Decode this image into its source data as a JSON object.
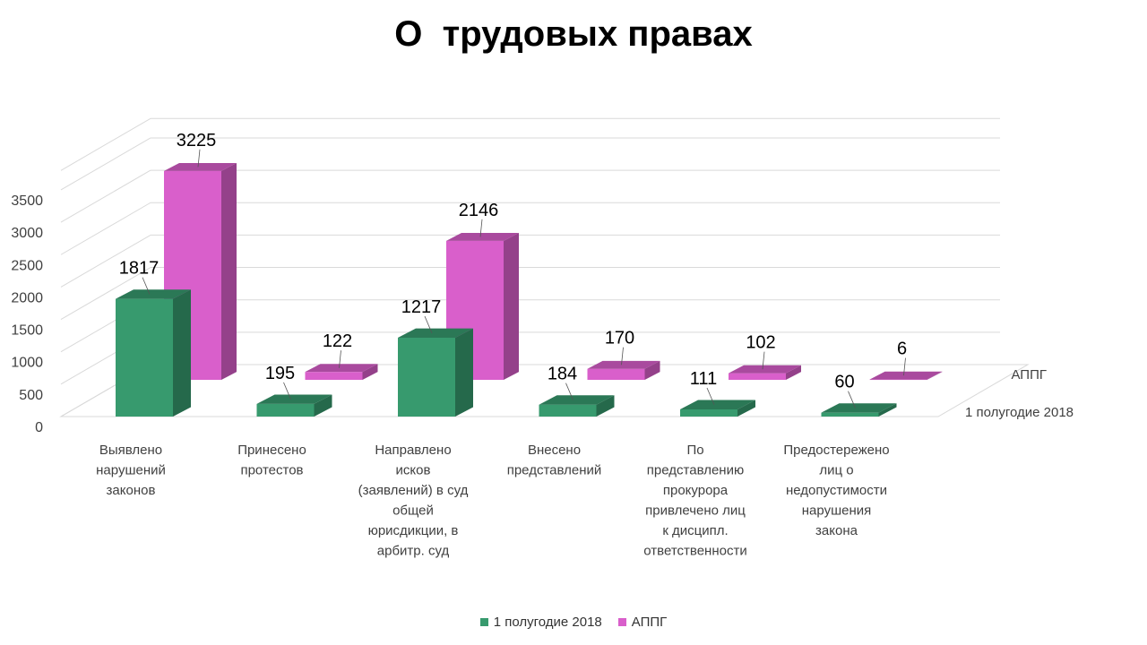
{
  "chart_data": {
    "type": "bar",
    "title": "О  трудовых правах",
    "categories": [
      "Выявлено нарушений законов",
      "Принесено протестов",
      "Направлено исков (заявлений) в суд общей юрисдикции, в арбитр. суд",
      "Внесено представлений",
      "По представлению прокурора привлечено лиц к дисципл. ответственности",
      "Предостережено лиц о недопустимости нарушения закона"
    ],
    "category_lines": [
      [
        "Выявлено",
        "нарушений",
        "законов"
      ],
      [
        "Принесено",
        "протестов"
      ],
      [
        "Направлено",
        "исков",
        "(заявлений) в суд",
        "общей",
        "юрисдикции, в",
        "арбитр. суд"
      ],
      [
        "Внесено",
        "представлений"
      ],
      [
        "По",
        "представлению",
        "прокурора",
        "привлечено лиц",
        "к дисципл.",
        "ответственности"
      ],
      [
        "Предостережено",
        "лиц о",
        "недопустимости",
        "нарушения",
        "закона"
      ]
    ],
    "series": [
      {
        "name": "1 полугодие 2018",
        "values": [
          1817,
          195,
          1217,
          184,
          111,
          60
        ],
        "color": "#379a6e"
      },
      {
        "name": "АППГ",
        "values": [
          3225,
          122,
          2146,
          170,
          102,
          6
        ],
        "color": "#d95fcb"
      }
    ],
    "yticks": [
      0,
      500,
      1000,
      1500,
      2000,
      2500,
      3000,
      3500
    ],
    "ylim": [
      0,
      3800
    ],
    "grid": true,
    "legend": "bottom",
    "depth_labels": [
      "1 полугодие 2018",
      "АППГ"
    ]
  }
}
